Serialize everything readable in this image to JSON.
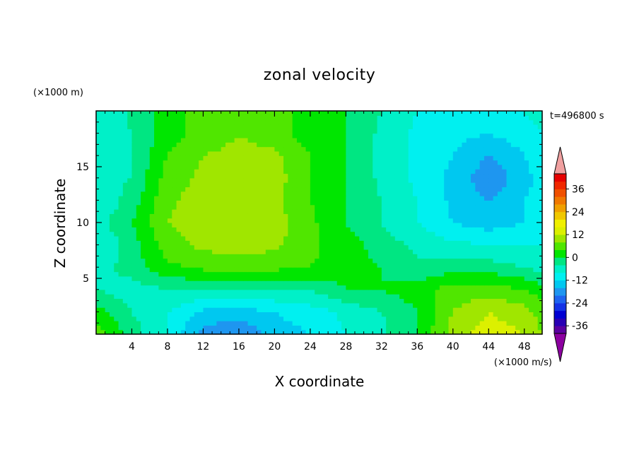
{
  "chart_data": {
    "type": "heatmap",
    "title": "zonal velocity",
    "xlabel": "X coordinate",
    "ylabel": "Z coordinate",
    "y_unit": "(×1000 m)",
    "x_unit": "(×1000 m/s)",
    "time_label": "t=496800 s",
    "xlim": [
      0,
      50
    ],
    "ylim": [
      0,
      20
    ],
    "x_ticks": [
      4,
      8,
      12,
      16,
      20,
      24,
      28,
      32,
      36,
      40,
      44,
      48
    ],
    "y_ticks": [
      5,
      10,
      15
    ],
    "colorbar": {
      "levels": [
        -40,
        -36,
        -32,
        -28,
        -24,
        -20,
        -16,
        -12,
        -8,
        -4,
        0,
        4,
        8,
        12,
        16,
        20,
        24,
        28,
        32,
        36,
        40
      ],
      "colors": [
        "#5a00a0",
        "#2800b4",
        "#0000d2",
        "#1432e6",
        "#1e64f0",
        "#1e96f0",
        "#00c8f0",
        "#00f0f0",
        "#00f0c8",
        "#00e682",
        "#00e600",
        "#50e600",
        "#a0e600",
        "#dcf000",
        "#f0f000",
        "#f0c800",
        "#f0a000",
        "#f07800",
        "#f05000",
        "#f02800",
        "#e60000"
      ],
      "tick_labels": [
        "36",
        "24",
        "12",
        "0",
        "-12",
        "-24",
        "-36"
      ],
      "under_color": "#8c00a0",
      "over_color": "#f0a0a0"
    },
    "field": {
      "x": [
        0,
        4,
        8,
        12,
        16,
        20,
        24,
        28,
        32,
        36,
        40,
        44,
        48,
        50
      ],
      "z": [
        0,
        2,
        4,
        6,
        8,
        10,
        12,
        14,
        16,
        18,
        20
      ],
      "u": [
        [
          6,
          -2,
          -8,
          -18,
          -20,
          -14,
          -12,
          -8,
          -5,
          0,
          10,
          14,
          12,
          8
        ],
        [
          2,
          -4,
          -8,
          -13,
          -14,
          -12,
          -10,
          -7,
          -4,
          0,
          8,
          12,
          10,
          6
        ],
        [
          -4,
          -6,
          -4,
          -4,
          -4,
          -4,
          -4,
          0,
          0,
          2,
          6,
          6,
          4,
          2
        ],
        [
          -6,
          -2,
          3,
          5,
          5,
          5,
          4,
          2,
          0,
          -3,
          -2,
          -2,
          -4,
          -6
        ],
        [
          -8,
          -2,
          6,
          9,
          10,
          9,
          5,
          2,
          -2,
          -5,
          -7,
          -8,
          -8,
          -8
        ],
        [
          -6,
          0,
          8,
          11,
          12,
          10,
          5,
          0,
          -4,
          -8,
          -12,
          -14,
          -12,
          -10
        ],
        [
          -8,
          -2,
          7,
          10,
          11,
          9,
          4,
          0,
          -4,
          -8,
          -13,
          -16,
          -12,
          -10
        ],
        [
          -6,
          -4,
          6,
          9,
          10,
          10,
          4,
          0,
          -5,
          -9,
          -13,
          -19,
          -14,
          -10
        ],
        [
          -8,
          -4,
          4,
          8,
          9,
          9,
          4,
          0,
          -5,
          -9,
          -12,
          -16,
          -12,
          -8
        ],
        [
          -8,
          -4,
          2,
          6,
          8,
          6,
          2,
          0,
          -5,
          -9,
          -11,
          -12,
          -10,
          -8
        ],
        [
          -8,
          -3,
          2,
          6,
          7,
          6,
          2,
          0,
          -4,
          -8,
          -10,
          -10,
          -8,
          -6
        ]
      ]
    }
  }
}
